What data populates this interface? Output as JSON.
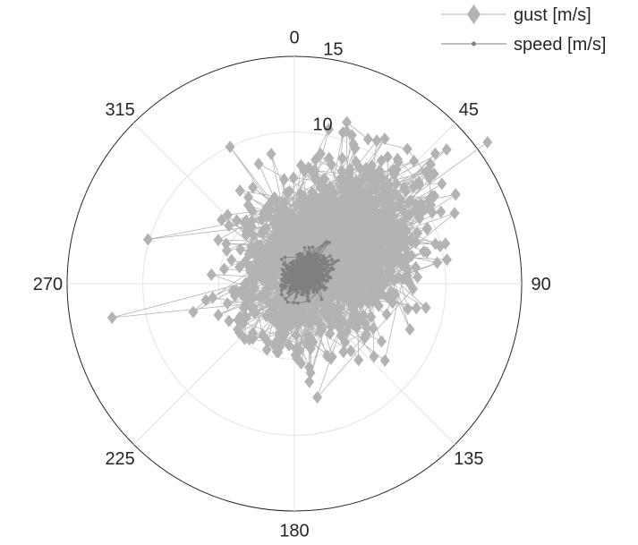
{
  "chart_data": {
    "type": "scatter",
    "projection": "polar",
    "angle_direction": "clockwise",
    "zero_angle": "top",
    "theta_ticks": [
      "0",
      "45",
      "90",
      "135",
      "180",
      "225",
      "270",
      "315"
    ],
    "theta_tick_values": [
      0,
      45,
      90,
      135,
      180,
      225,
      270,
      315
    ],
    "r_ticks": [
      "10",
      "15"
    ],
    "r_tick_values": [
      10,
      15
    ],
    "rlim": [
      0,
      15
    ],
    "grid": true,
    "legend_position": "top-right",
    "series": [
      {
        "name": "gust [m/s]",
        "marker": "diamond",
        "color": "#b3b3b3",
        "points": [
          {
            "theta": 18,
            "r": 11.2
          },
          {
            "theta": 27,
            "r": 10.7
          },
          {
            "theta": 40,
            "r": 11.6
          },
          {
            "theta": 52,
            "r": 11.3
          },
          {
            "theta": 60,
            "r": 10.4
          },
          {
            "theta": 68,
            "r": 7.5
          },
          {
            "theta": 76,
            "r": 8.8
          },
          {
            "theta": 86,
            "r": 5.8
          },
          {
            "theta": 98,
            "r": 5.5
          },
          {
            "theta": 112,
            "r": 4.2
          },
          {
            "theta": 125,
            "r": 5.8
          },
          {
            "theta": 140,
            "r": 5.8
          },
          {
            "theta": 152,
            "r": 3.6
          },
          {
            "theta": 165,
            "r": 3.6
          },
          {
            "theta": 178,
            "r": 3.4
          },
          {
            "theta": 192,
            "r": 3.8
          },
          {
            "theta": 205,
            "r": 4.2
          },
          {
            "theta": 222,
            "r": 4.9
          },
          {
            "theta": 235,
            "r": 3.9
          },
          {
            "theta": 250,
            "r": 3.3
          },
          {
            "theta": 262,
            "r": 3.5
          },
          {
            "theta": 270,
            "r": 3.1
          },
          {
            "theta": 285,
            "r": 3.0
          },
          {
            "theta": 300,
            "r": 2.8
          },
          {
            "theta": 318,
            "r": 3.4
          },
          {
            "theta": 333,
            "r": 4.1
          },
          {
            "theta": 345,
            "r": 4.4
          },
          {
            "theta": 352,
            "r": 5.0
          },
          {
            "theta": 10,
            "r": 7.6
          },
          {
            "theta": 35,
            "r": 8.6
          }
        ]
      },
      {
        "name": "speed [m/s]",
        "marker": "dot",
        "color": "#7f7f7f",
        "points": [
          {
            "theta": 30,
            "r": 2.2
          },
          {
            "theta": 50,
            "r": 2.6
          },
          {
            "theta": 70,
            "r": 2.4
          },
          {
            "theta": 85,
            "r": 2.2
          },
          {
            "theta": 110,
            "r": 1.6
          },
          {
            "theta": 140,
            "r": 1.5
          },
          {
            "theta": 170,
            "r": 1.3
          },
          {
            "theta": 200,
            "r": 1.3
          },
          {
            "theta": 230,
            "r": 1.1
          },
          {
            "theta": 260,
            "r": 0.9
          },
          {
            "theta": 290,
            "r": 0.8
          },
          {
            "theta": 320,
            "r": 1.1
          },
          {
            "theta": 350,
            "r": 1.4
          },
          {
            "theta": 15,
            "r": 1.9
          }
        ]
      }
    ]
  }
}
